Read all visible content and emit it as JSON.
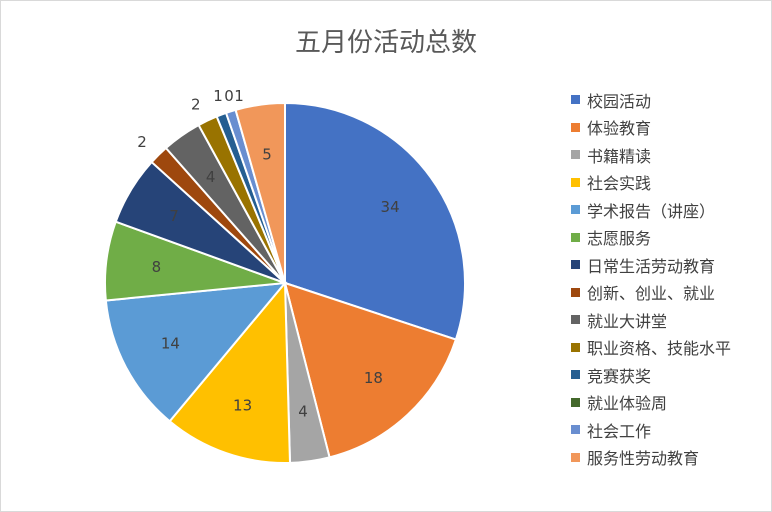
{
  "chart_data": {
    "type": "pie",
    "title": "五月份活动总数",
    "categories": [
      "校园活动",
      "体验教育",
      "书籍精读",
      "社会实践",
      "学术报告（讲座）",
      "志愿服务",
      "日常生活劳动教育",
      "创新、创业、就业",
      "就业大讲堂",
      "职业资格、技能水平",
      "竞赛获奖",
      "就业体验周",
      "社会工作",
      "服务性劳动教育"
    ],
    "values": [
      34,
      18,
      4,
      13,
      14,
      8,
      7,
      2,
      4,
      2,
      1,
      0,
      1,
      5
    ],
    "colors": [
      "#4472C4",
      "#ED7D31",
      "#A5A5A5",
      "#FFC000",
      "#5B9BD5",
      "#70AD47",
      "#264478",
      "#9E480E",
      "#636363",
      "#997300",
      "#255E91",
      "#43682B",
      "#698ED0",
      "#F1975A"
    ],
    "legend_position": "right"
  }
}
